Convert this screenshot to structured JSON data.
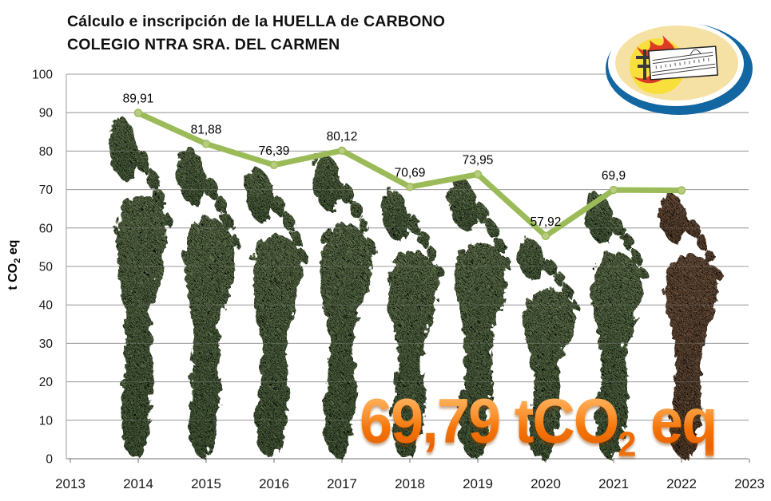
{
  "title": {
    "line1": "Cálculo e inscripción de la HUELLA de CARBONO",
    "line2": "COLEGIO NTRA SRA. DEL CARMEN"
  },
  "y_axis": {
    "title_pre": "t CO",
    "title_sub": "2",
    "title_post": " eq"
  },
  "chart_data": {
    "type": "line",
    "title": "Cálculo e inscripción de la HUELLA de CARBONO — COLEGIO NTRA SRA. DEL CARMEN",
    "x": [
      2014,
      2015,
      2016,
      2017,
      2018,
      2019,
      2020,
      2021,
      2022
    ],
    "values": [
      89.91,
      81.88,
      76.39,
      80.12,
      70.69,
      73.95,
      57.92,
      69.9,
      69.79
    ],
    "data_labels": [
      "89,91",
      "81,88",
      "76,39",
      "80,12",
      "70,69",
      "73,95",
      "57,92",
      "69,9",
      ""
    ],
    "x_tick_labels": [
      "2013",
      "2014",
      "2015",
      "2016",
      "2017",
      "2018",
      "2019",
      "2020",
      "2021",
      "2022",
      "2023"
    ],
    "y_tick_labels": [
      "0",
      "10",
      "20",
      "30",
      "40",
      "50",
      "60",
      "70",
      "80",
      "90",
      "100"
    ],
    "ylabel": "t CO2 eq",
    "xlim": [
      2013,
      2023
    ],
    "ylim": [
      0,
      100
    ],
    "grid": true,
    "legend": false,
    "line_color": "#9BBB59",
    "marker_color": "#b9cc80",
    "grid_color": "#9b9b9b",
    "axis_color": "#6e6e6e",
    "footprint_green_top": "#7a8f63",
    "footprint_green_bottom": "#5c744d",
    "footprint_brown_top": "#8a6a52",
    "footprint_brown_bottom": "#6e543f",
    "footprint_year_brown": 2022
  },
  "annotation": {
    "value": "69,79",
    "unit_pre": " tCO",
    "sub": "2",
    "unit_post": " eq",
    "color": "#F4770B"
  },
  "logo_colors": {
    "ring": "#1266A2",
    "inner": "#F6E1A4",
    "sun": "#F9DF3B",
    "flames": "#DD3B26",
    "cross": "#3a3a3a"
  }
}
